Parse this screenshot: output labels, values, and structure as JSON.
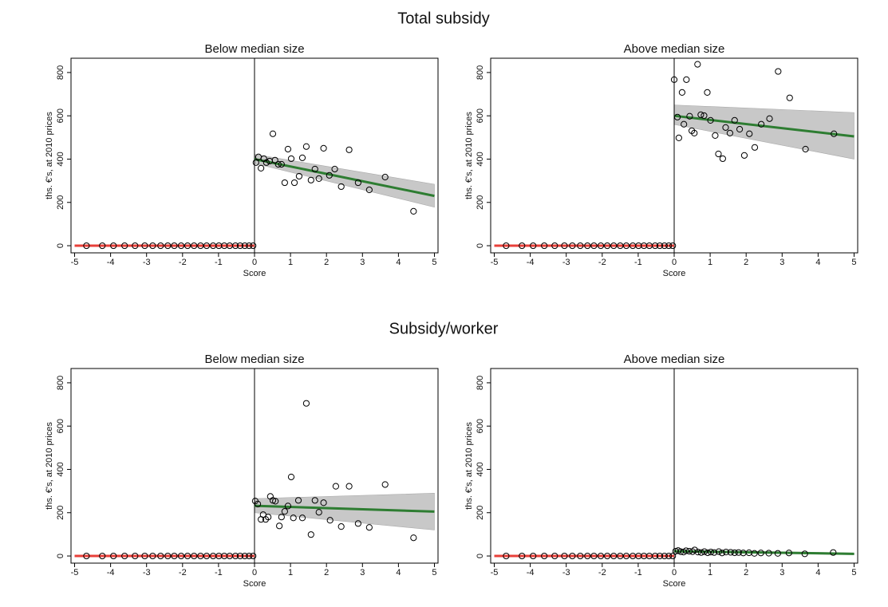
{
  "section_titles": [
    "Total subsidy",
    "Subsidy/worker"
  ],
  "chart_data": [
    {
      "type": "scatter",
      "title": "Below median size",
      "xlabel": "Score",
      "ylabel": "ths. €'s, at 2010 prices",
      "xlim": [
        -5.1,
        5.1
      ],
      "ylim": [
        -33,
        866
      ],
      "xticks": [
        -5,
        -4,
        -3,
        -2,
        -1,
        0,
        1,
        2,
        3,
        4,
        5
      ],
      "yticks": [
        0,
        200,
        400,
        600,
        800
      ],
      "points": {
        "x": [
          -4.67,
          -4.23,
          -3.92,
          -3.61,
          -3.32,
          -3.05,
          -2.83,
          -2.61,
          -2.41,
          -2.23,
          -2.04,
          -1.86,
          -1.68,
          -1.5,
          -1.33,
          -1.15,
          -0.99,
          -0.84,
          -0.69,
          -0.53,
          -0.4,
          -0.27,
          -0.15,
          -0.04,
          0.04,
          0.11,
          0.18,
          0.26,
          0.33,
          0.42,
          0.51,
          0.57,
          0.66,
          0.75,
          0.84,
          0.93,
          1.02,
          1.11,
          1.24,
          1.33,
          1.44,
          1.57,
          1.68,
          1.79,
          1.92,
          2.08,
          2.23,
          2.41,
          2.63,
          2.88,
          3.19,
          3.63,
          4.42
        ],
        "values": [
          0,
          0,
          0,
          0,
          0,
          0,
          0,
          0,
          0,
          0,
          0,
          0,
          0,
          0,
          0,
          0,
          0,
          0,
          0,
          0,
          0,
          0,
          0,
          0,
          384,
          410,
          358,
          402,
          384,
          391,
          517,
          395,
          376,
          376,
          291,
          446,
          402,
          291,
          321,
          406,
          458,
          303,
          354,
          310,
          450,
          325,
          354,
          273,
          443,
          291,
          258,
          317,
          159
        ]
      },
      "fit_left": {
        "x": [
          -5,
          0
        ],
        "values": [
          0,
          0
        ],
        "color": "#e8403a"
      },
      "fit_right": {
        "x": [
          0,
          5
        ],
        "values": [
          400,
          230
        ],
        "lower": [
          380,
          178
        ],
        "upper": [
          422,
          284
        ],
        "color": "#2e7d32",
        "band_color": "#c8c8c8"
      }
    },
    {
      "type": "scatter",
      "title": "Above median size",
      "xlabel": "Score",
      "ylabel": "ths. €'s, at 2010 prices",
      "xlim": [
        -5.1,
        5.1
      ],
      "ylim": [
        -33,
        866
      ],
      "xticks": [
        -5,
        -4,
        -3,
        -2,
        -1,
        0,
        1,
        2,
        3,
        4,
        5
      ],
      "yticks": [
        0,
        200,
        400,
        600,
        800
      ],
      "points": {
        "x": [
          -4.67,
          -4.23,
          -3.92,
          -3.61,
          -3.32,
          -3.05,
          -2.83,
          -2.61,
          -2.41,
          -2.23,
          -2.04,
          -1.86,
          -1.68,
          -1.5,
          -1.33,
          -1.15,
          -0.99,
          -0.84,
          -0.69,
          -0.53,
          -0.4,
          -0.27,
          -0.15,
          -0.04,
          0.0,
          0.09,
          0.13,
          0.22,
          0.27,
          0.34,
          0.43,
          0.49,
          0.56,
          0.65,
          0.74,
          0.83,
          0.92,
          1.01,
          1.14,
          1.23,
          1.35,
          1.43,
          1.55,
          1.68,
          1.82,
          1.95,
          2.09,
          2.24,
          2.42,
          2.65,
          2.89,
          3.21,
          3.65,
          4.44
        ],
        "values": [
          0,
          0,
          0,
          0,
          0,
          0,
          0,
          0,
          0,
          0,
          0,
          0,
          0,
          0,
          0,
          0,
          0,
          0,
          0,
          0,
          0,
          0,
          0,
          0,
          767,
          594,
          498,
          708,
          561,
          767,
          598,
          531,
          520,
          838,
          605,
          601,
          708,
          579,
          509,
          424,
          402,
          546,
          520,
          579,
          538,
          417,
          517,
          454,
          561,
          587,
          805,
          683,
          446,
          517
        ]
      },
      "fit_left": {
        "x": [
          -5,
          0
        ],
        "values": [
          0,
          0
        ],
        "color": "#e8403a"
      },
      "fit_right": {
        "x": [
          0,
          5
        ],
        "values": [
          600,
          505
        ],
        "lower": [
          560,
          400
        ],
        "upper": [
          650,
          615
        ],
        "color": "#2e7d32",
        "band_color": "#c8c8c8"
      }
    },
    {
      "type": "scatter",
      "title": "Below median size",
      "xlabel": "Score",
      "ylabel": "ths. €'s, at 2010 prices",
      "xlim": [
        -5.1,
        5.1
      ],
      "ylim": [
        -33,
        866
      ],
      "xticks": [
        -5,
        -4,
        -3,
        -2,
        -1,
        0,
        1,
        2,
        3,
        4,
        5
      ],
      "yticks": [
        0,
        200,
        400,
        600,
        800
      ],
      "points": {
        "x": [
          -4.67,
          -4.23,
          -3.92,
          -3.61,
          -3.32,
          -3.05,
          -2.83,
          -2.61,
          -2.41,
          -2.23,
          -2.04,
          -1.86,
          -1.68,
          -1.5,
          -1.33,
          -1.15,
          -0.99,
          -0.84,
          -0.69,
          -0.53,
          -0.4,
          -0.27,
          -0.15,
          -0.04,
          0.02,
          0.09,
          0.18,
          0.24,
          0.31,
          0.38,
          0.44,
          0.51,
          0.58,
          0.69,
          0.75,
          0.84,
          0.93,
          1.02,
          1.08,
          1.22,
          1.33,
          1.44,
          1.57,
          1.68,
          1.79,
          1.92,
          2.1,
          2.26,
          2.41,
          2.63,
          2.88,
          3.19,
          3.63,
          4.42
        ],
        "values": [
          0,
          0,
          0,
          0,
          0,
          0,
          0,
          0,
          0,
          0,
          0,
          0,
          0,
          0,
          0,
          0,
          0,
          0,
          0,
          0,
          0,
          0,
          0,
          0,
          254,
          240,
          169,
          191,
          169,
          180,
          275,
          257,
          253,
          139,
          180,
          206,
          231,
          365,
          176,
          257,
          176,
          705,
          99,
          257,
          202,
          246,
          165,
          322,
          136,
          322,
          150,
          132,
          330,
          84
        ]
      },
      "fit_left": {
        "x": [
          -5,
          0
        ],
        "values": [
          0,
          0
        ],
        "color": "#e8403a"
      },
      "fit_right": {
        "x": [
          0,
          5
        ],
        "values": [
          232,
          205
        ],
        "lower": [
          200,
          120
        ],
        "upper": [
          265,
          290
        ],
        "color": "#2e7d32",
        "band_color": "#c8c8c8"
      }
    },
    {
      "type": "scatter",
      "title": "Above median size",
      "xlabel": "Score",
      "ylabel": "ths. €'s, at 2010 prices",
      "xlim": [
        -5.1,
        5.1
      ],
      "ylim": [
        -33,
        866
      ],
      "xticks": [
        -5,
        -4,
        -3,
        -2,
        -1,
        0,
        1,
        2,
        3,
        4,
        5
      ],
      "yticks": [
        0,
        200,
        400,
        600,
        800
      ],
      "points": {
        "x": [
          -4.67,
          -4.23,
          -3.92,
          -3.61,
          -3.32,
          -3.05,
          -2.83,
          -2.61,
          -2.41,
          -2.23,
          -2.04,
          -1.86,
          -1.68,
          -1.5,
          -1.33,
          -1.15,
          -0.99,
          -0.84,
          -0.69,
          -0.53,
          -0.4,
          -0.27,
          -0.15,
          -0.04,
          0.04,
          0.11,
          0.18,
          0.26,
          0.33,
          0.42,
          0.51,
          0.57,
          0.66,
          0.75,
          0.84,
          0.93,
          1.02,
          1.11,
          1.24,
          1.33,
          1.44,
          1.57,
          1.68,
          1.79,
          1.92,
          2.08,
          2.23,
          2.41,
          2.63,
          2.88,
          3.19,
          3.63,
          4.42
        ],
        "values": [
          0,
          0,
          0,
          0,
          0,
          0,
          0,
          0,
          0,
          0,
          0,
          0,
          0,
          0,
          0,
          0,
          0,
          0,
          0,
          0,
          0,
          0,
          0,
          0,
          22,
          25,
          20,
          18,
          24,
          22,
          20,
          28,
          18,
          16,
          20,
          15,
          18,
          16,
          20,
          14,
          18,
          17,
          15,
          16,
          14,
          15,
          12,
          14,
          13,
          12,
          14,
          10,
          16
        ]
      },
      "fit_left": {
        "x": [
          -5,
          0
        ],
        "values": [
          0,
          0
        ],
        "color": "#e8403a"
      },
      "fit_right": {
        "x": [
          0,
          5
        ],
        "values": [
          22,
          10
        ],
        "lower": [
          18,
          6
        ],
        "upper": [
          26,
          14
        ],
        "color": "#2e7d32",
        "band_color": "#c8c8c8"
      }
    }
  ]
}
